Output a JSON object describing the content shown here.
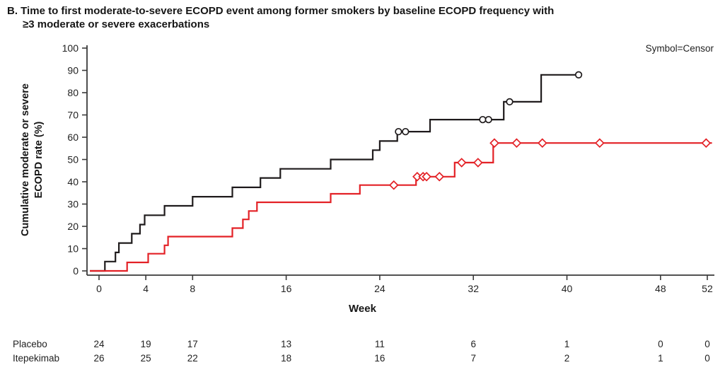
{
  "title": {
    "line1": "B. Time to first moderate-to-severe ECOPD event among former smokers by baseline ECOPD frequency with",
    "line2": "≥3 moderate or severe exacerbations"
  },
  "legend_note": "Symbol=Censor",
  "chart_data": {
    "type": "line",
    "subtype": "kaplan-meier-step",
    "title": "B. Time to first moderate-to-severe ECOPD event among former smokers by baseline ECOPD frequency with ≥3 moderate or severe exacerbations",
    "xlabel": "Week",
    "ylabel_line1": "Cumulative moderate or severe",
    "ylabel_line2": "ECOPD rate (%)",
    "xlim": [
      0,
      52
    ],
    "ylim": [
      0,
      100
    ],
    "x_ticks": [
      0,
      4,
      8,
      16,
      24,
      32,
      40,
      48,
      52
    ],
    "y_ticks": [
      0,
      10,
      20,
      30,
      40,
      50,
      60,
      70,
      80,
      90,
      100
    ],
    "annotation": "Symbol=Censor",
    "grid": false,
    "series": [
      {
        "name": "Placebo",
        "color": "#1f1b1c",
        "marker": "circle",
        "steps": [
          [
            0.5,
            4.2
          ],
          [
            1.4,
            8.3
          ],
          [
            1.7,
            12.5
          ],
          [
            2.8,
            16.7
          ],
          [
            3.5,
            20.8
          ],
          [
            3.9,
            25.0
          ],
          [
            5.6,
            29.2
          ],
          [
            8.0,
            33.3
          ],
          [
            11.4,
            37.5
          ],
          [
            13.8,
            41.7
          ],
          [
            15.5,
            45.8
          ],
          [
            19.8,
            50.0
          ],
          [
            23.4,
            54.2
          ],
          [
            24.0,
            58.3
          ],
          [
            25.5,
            62.5
          ],
          [
            28.3,
            67.9
          ],
          [
            34.6,
            75.9
          ],
          [
            37.8,
            88.0
          ]
        ],
        "end_week": 41.2,
        "censor_points": [
          [
            25.6,
            62.5
          ],
          [
            26.2,
            62.5
          ],
          [
            32.8,
            67.9
          ],
          [
            33.3,
            67.9
          ],
          [
            35.1,
            75.9
          ],
          [
            41.0,
            88.0
          ]
        ]
      },
      {
        "name": "Itepekimab",
        "color": "#e32126",
        "marker": "diamond",
        "steps": [
          [
            2.4,
            3.8
          ],
          [
            4.2,
            7.7
          ],
          [
            5.6,
            11.5
          ],
          [
            5.9,
            15.4
          ],
          [
            11.4,
            19.2
          ],
          [
            12.3,
            23.1
          ],
          [
            12.8,
            26.9
          ],
          [
            13.5,
            30.8
          ],
          [
            19.8,
            34.6
          ],
          [
            22.3,
            38.5
          ],
          [
            27.1,
            42.3
          ],
          [
            30.4,
            48.6
          ],
          [
            33.7,
            57.4
          ]
        ],
        "end_week": 52.4,
        "censor_points": [
          [
            25.2,
            38.5
          ],
          [
            27.2,
            42.3
          ],
          [
            27.7,
            42.3
          ],
          [
            28.0,
            42.3
          ],
          [
            29.1,
            42.3
          ],
          [
            31.0,
            48.6
          ],
          [
            32.4,
            48.6
          ],
          [
            33.8,
            57.4
          ],
          [
            35.7,
            57.4
          ],
          [
            37.9,
            57.4
          ],
          [
            42.8,
            57.4
          ],
          [
            51.9,
            57.4
          ]
        ]
      }
    ],
    "at_risk_table": {
      "weeks": [
        0,
        4,
        8,
        16,
        24,
        32,
        40,
        48,
        52
      ],
      "rows": [
        {
          "label": "Placebo",
          "counts": [
            24,
            19,
            17,
            13,
            11,
            6,
            1,
            0,
            0
          ]
        },
        {
          "label": "Itepekimab",
          "counts": [
            26,
            25,
            22,
            18,
            16,
            7,
            2,
            1,
            0
          ]
        }
      ]
    }
  }
}
